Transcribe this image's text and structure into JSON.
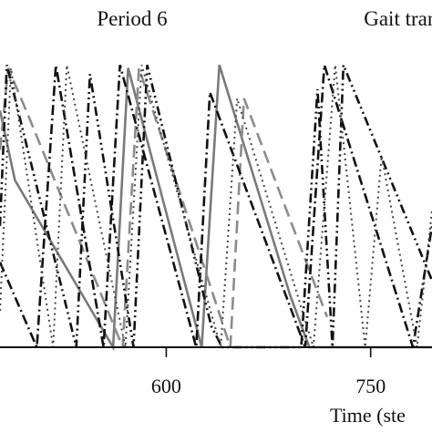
{
  "chart_data": {
    "type": "line",
    "title": "",
    "xlabel": "Time (ste",
    "ylabel": "",
    "xlim": [
      478,
      795
    ],
    "ylim": [
      0,
      1
    ],
    "grid": false,
    "legend": "none",
    "annotations": [
      {
        "text": "Period 6",
        "x": 575,
        "y": 1.11
      },
      {
        "text": "Gait transitio",
        "x": 745,
        "y": 1.11
      }
    ],
    "x_ticks": [
      {
        "value": 600,
        "label": "600"
      },
      {
        "value": 750,
        "label": "750"
      }
    ],
    "series": [
      {
        "style": "solid",
        "color": "#7a7a7a",
        "x": [
          478,
          489,
          561,
          572,
          626,
          639,
          691,
          705,
          795
        ],
        "y": [
          0.78,
          0.55,
          0.0,
          0.92,
          0.0,
          0.93,
          0.17,
          0.0,
          0.0
        ]
      },
      {
        "style": "dashed",
        "color": "#8c8c8c",
        "x": [
          478,
          484,
          500,
          568,
          580,
          647,
          657,
          718
        ],
        "y": [
          0.65,
          0.92,
          0.75,
          0.0,
          0.92,
          0.0,
          0.82,
          0.1
        ]
      },
      {
        "style": "dashdot",
        "color": "#111111",
        "x": [
          478,
          505,
          519,
          554,
          566,
          622,
          632,
          702,
          716,
          781,
          795
        ],
        "y": [
          0.28,
          0.0,
          0.93,
          0.0,
          0.93,
          0.0,
          0.84,
          0.0,
          0.93,
          0.0,
          0.4
        ]
      },
      {
        "style": "dashdotdot",
        "color": "#111111",
        "x": [
          478,
          483,
          534,
          544,
          576,
          586,
          633,
          641,
          656,
          669,
          699,
          711,
          722,
          730,
          795
        ],
        "y": [
          0.4,
          0.93,
          0.0,
          0.9,
          0.0,
          0.93,
          0.07,
          0.0,
          0.0,
          0.0,
          0.0,
          0.85,
          0.0,
          0.93,
          0.22
        ]
      },
      {
        "style": "dotted",
        "color": "#444444",
        "x": [
          478,
          486,
          517,
          527,
          570,
          582,
          640,
          652,
          708,
          724,
          746,
          758,
          784,
          795
        ],
        "y": [
          0.12,
          0.92,
          0.0,
          0.93,
          0.0,
          0.93,
          0.0,
          0.82,
          0.0,
          0.93,
          0.0,
          0.63,
          0.0,
          0.45
        ]
      }
    ]
  }
}
